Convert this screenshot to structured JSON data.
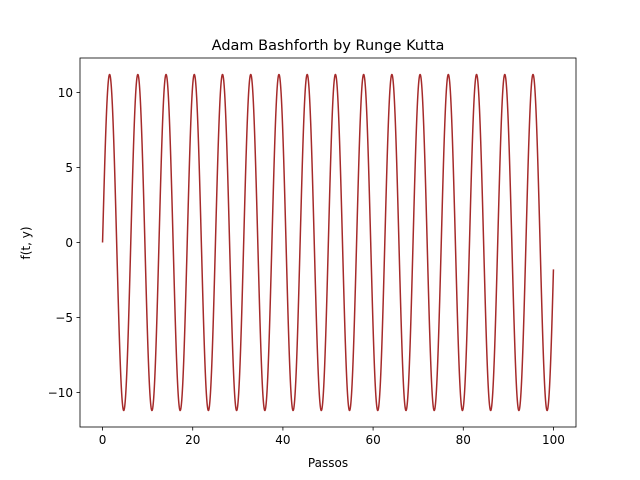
{
  "chart_data": {
    "type": "line",
    "title": "Adam Bashforth by Runge Kutta",
    "xlabel": "Passos",
    "ylabel": "f(t, y)",
    "xlim": [
      -5,
      105
    ],
    "ylim": [
      -12.3,
      12.3
    ],
    "xticks": [
      0,
      20,
      40,
      60,
      80,
      100
    ],
    "yticks": [
      -10,
      -5,
      0,
      5,
      10
    ],
    "xtick_labels": [
      "0",
      "20",
      "40",
      "60",
      "80",
      "100"
    ],
    "ytick_labels": [
      "−10",
      "−5",
      "0",
      "5",
      "10"
    ],
    "grid": false,
    "legend": "none",
    "series": [
      {
        "color": "#a52a2a",
        "function": "y = A * sin(2*pi*x / period)",
        "amplitude": 11.2,
        "period": 6.26,
        "x_start": 0,
        "x_end": 100
      }
    ]
  }
}
